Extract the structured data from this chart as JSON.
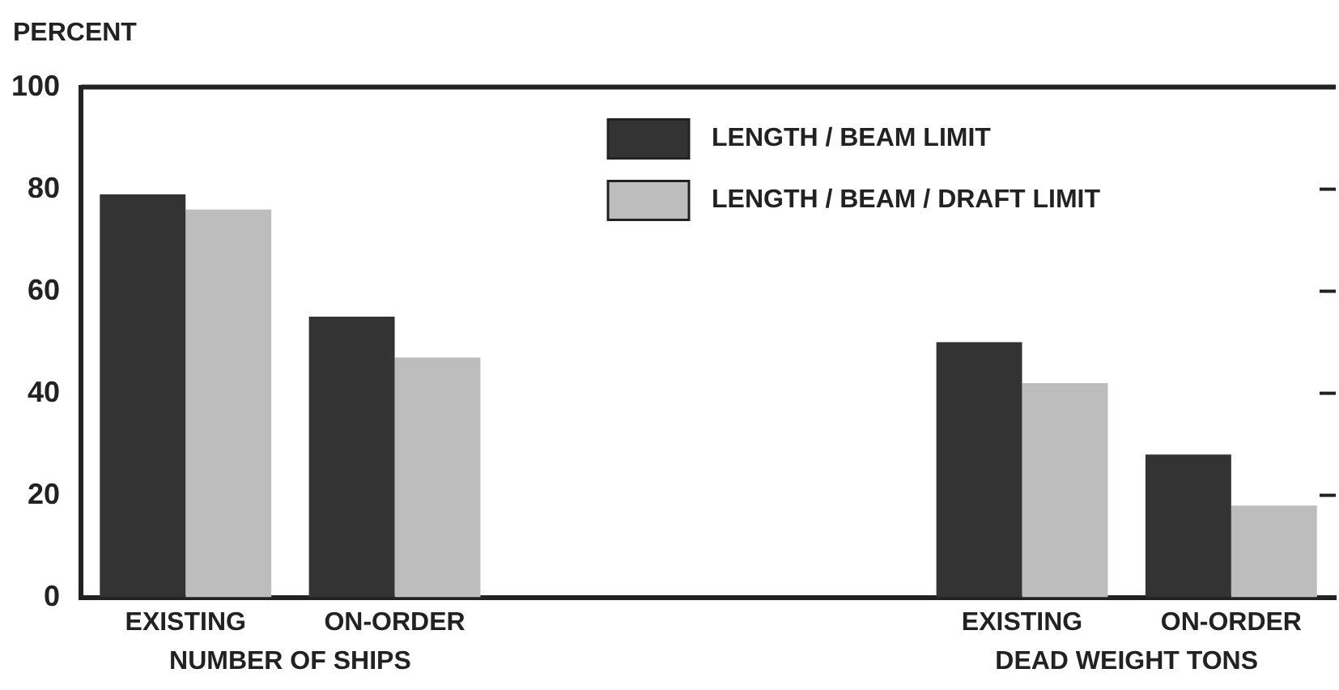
{
  "chart_data": {
    "type": "bar",
    "ylabel": "PERCENT",
    "categories": [
      "EXISTING",
      "ON-ORDER",
      null,
      null,
      "EXISTING",
      "ON-ORDER"
    ],
    "series": [
      {
        "name": "LENGTH / BEAM LIMIT",
        "color": "#333333",
        "values": [
          79,
          55,
          null,
          null,
          50,
          28
        ]
      },
      {
        "name": "LENGTH / BEAM / DRAFT LIMIT",
        "color": "#bdbdbd",
        "values": [
          76,
          47,
          null,
          null,
          42,
          18
        ]
      }
    ],
    "annotations": [
      "NUMBER OF SHIPS",
      "DEAD WEIGHT TONS"
    ],
    "ylim": [
      0,
      100
    ],
    "yticks": [
      0,
      20,
      40,
      60,
      80,
      100
    ],
    "grid": false,
    "legend": "top right"
  }
}
